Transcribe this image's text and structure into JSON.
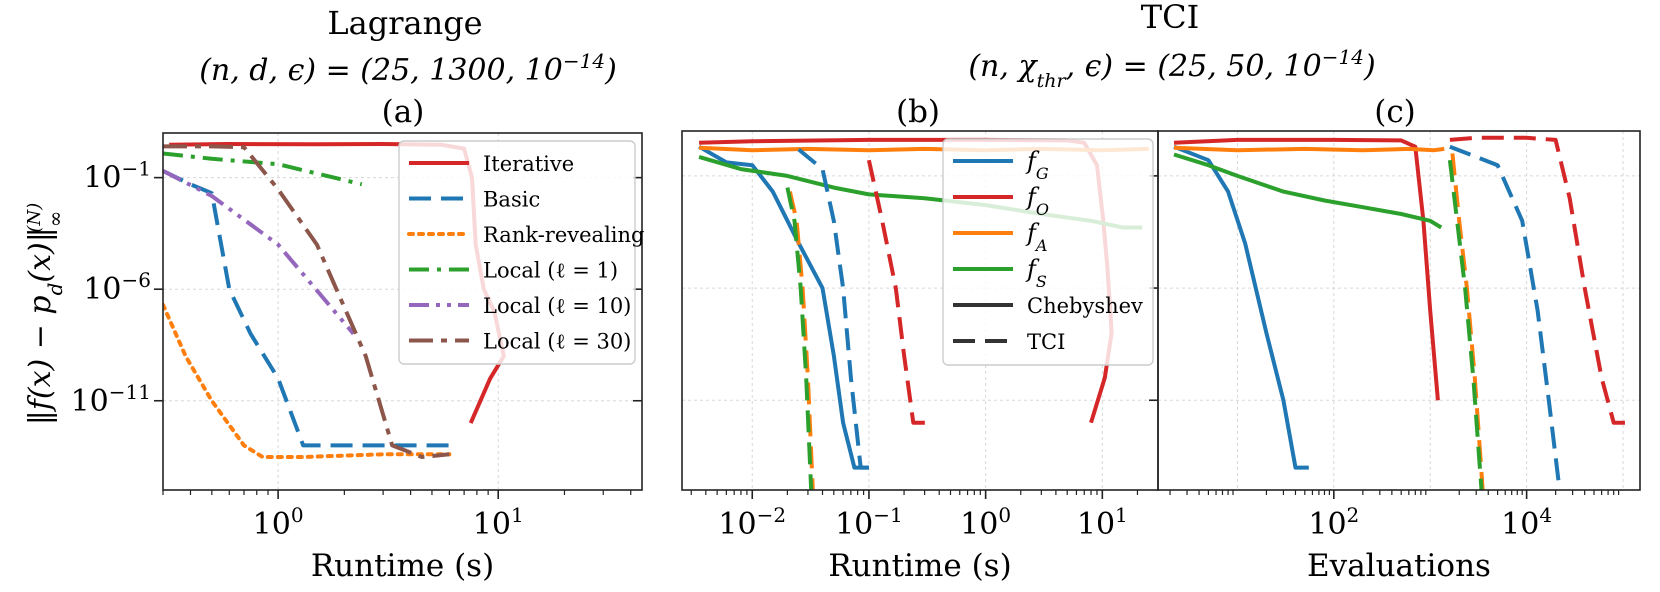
{
  "titles": {
    "left_main": "Lagrange",
    "left_params": "(n, d, ϵ) = (25, 1300, 10",
    "left_params_exp": "−14",
    "left_params_end": ")",
    "right_main": "TCI",
    "right_params": "(n, χ",
    "right_params_sub": "thr",
    "right_params_rest": ", ϵ) = (25, 50, 10",
    "right_params_exp": "−14",
    "right_params_end": ")"
  },
  "panel_labels": {
    "a": "(a)",
    "b": "(b)",
    "c": "(c)"
  },
  "ylabel": "‖f(x) − p",
  "ylabel_sub": "d",
  "ylabel_rest": "(x)‖",
  "ylabel_sup": "(N)",
  "ylabel_subinf": "∞",
  "colors": {
    "blue": "#1f77b4",
    "red": "#d62728",
    "orange": "#ff7f0e",
    "green": "#2ca02c",
    "purple": "#9467bd",
    "brown": "#8c564b",
    "black": "#333333"
  },
  "chart_data": [
    {
      "id": "a",
      "type": "line",
      "title": "(a)",
      "xlabel": "Runtime (s)",
      "xscale": "log",
      "yscale": "log",
      "xlim": [
        0.3,
        45
      ],
      "ylim": [
        1e-15,
        10.0
      ],
      "x_ticks": [
        {
          "v": 1,
          "b": "10",
          "e": "0"
        },
        {
          "v": 10,
          "b": "10",
          "e": "1"
        }
      ],
      "y_ticks": [
        {
          "v": 0.1,
          "b": "10",
          "e": "−1"
        },
        {
          "v": 1e-06,
          "b": "10",
          "e": "−6"
        },
        {
          "v": 1e-11,
          "b": "10",
          "e": "−11"
        }
      ],
      "legend": {
        "position": "upper right",
        "entries": [
          {
            "label": "Iterative",
            "color": "red",
            "dash": "solid"
          },
          {
            "label": "Basic",
            "color": "blue",
            "dash": "dashed"
          },
          {
            "label": "Rank-revealing",
            "color": "orange",
            "dash": "dotted"
          },
          {
            "label": "Local (ℓ = 1)",
            "color": "green",
            "dash": "dashdot"
          },
          {
            "label": "Local (ℓ = 10)",
            "color": "purple",
            "dash": "dashdotdot"
          },
          {
            "label": "Local (ℓ = 30)",
            "color": "brown",
            "dash": "dashdotwide"
          }
        ]
      },
      "series": [
        {
          "name": "Iterative",
          "color": "red",
          "dash": "solid",
          "points": [
            [
              0.32,
              3
            ],
            [
              0.6,
              3.2
            ],
            [
              1.5,
              3.1
            ],
            [
              3,
              3.2
            ],
            [
              5.5,
              3
            ],
            [
              7,
              2
            ],
            [
              7.6,
              0.1
            ],
            [
              7.9,
              0.0001
            ],
            [
              8.6,
              1e-06
            ],
            [
              9.6,
              1e-07
            ],
            [
              10.6,
              1e-09
            ],
            [
              9.2,
              1e-10
            ],
            [
              7.5,
              1e-12
            ]
          ]
        },
        {
          "name": "Basic",
          "color": "blue",
          "dash": "dashed",
          "points": [
            [
              0.3,
              0.2
            ],
            [
              0.4,
              0.05
            ],
            [
              0.5,
              0.02
            ],
            [
              0.6,
              1e-06
            ],
            [
              0.75,
              1e-08
            ],
            [
              1,
              1e-10
            ],
            [
              1.3,
              1e-13
            ],
            [
              2,
              1e-13
            ],
            [
              3,
              1e-13
            ],
            [
              6,
              1e-13
            ]
          ]
        },
        {
          "name": "Rank-revealing",
          "color": "orange",
          "dash": "dotted",
          "points": [
            [
              0.3,
              2e-07
            ],
            [
              0.38,
              1e-09
            ],
            [
              0.5,
              1e-11
            ],
            [
              0.7,
              1e-13
            ],
            [
              0.85,
              3e-14
            ],
            [
              1.3,
              3e-14
            ],
            [
              3,
              4e-14
            ],
            [
              6,
              4e-14
            ]
          ]
        },
        {
          "name": "Local (ℓ = 1)",
          "color": "green",
          "dash": "dashdot",
          "points": [
            [
              0.3,
              1.2
            ],
            [
              0.5,
              0.7
            ],
            [
              1,
              0.4
            ],
            [
              2.4,
              0.05
            ]
          ]
        },
        {
          "name": "Local (ℓ = 10)",
          "color": "purple",
          "dash": "dashdotdot",
          "points": [
            [
              0.3,
              0.2
            ],
            [
              0.5,
              0.015
            ],
            [
              1,
              0.0001
            ],
            [
              2.2,
              1e-08
            ]
          ]
        },
        {
          "name": "Local (ℓ = 30)",
          "color": "brown",
          "dash": "dashdotwide",
          "points": [
            [
              0.3,
              2.5
            ],
            [
              0.5,
              2.5
            ],
            [
              0.7,
              2.3
            ],
            [
              1,
              0.03
            ],
            [
              1.5,
              0.0001
            ],
            [
              2.5,
              1e-09
            ],
            [
              3.3,
              1e-13
            ],
            [
              4.5,
              3e-14
            ],
            [
              6,
              4e-14
            ]
          ]
        }
      ]
    },
    {
      "id": "b",
      "type": "line",
      "title": "(b)",
      "xlabel": "Runtime (s)",
      "xscale": "log",
      "yscale": "log",
      "xlim": [
        0.0025,
        30
      ],
      "ylim": [
        1e-15,
        10.0
      ],
      "x_ticks": [
        {
          "v": 0.01,
          "b": "10",
          "e": "−2"
        },
        {
          "v": 0.1,
          "b": "10",
          "e": "−1"
        },
        {
          "v": 1,
          "b": "10",
          "e": "0"
        },
        {
          "v": 10,
          "b": "10",
          "e": "1"
        }
      ],
      "y_ticks": [
        {
          "v": 0.1
        },
        {
          "v": 1e-06
        },
        {
          "v": 1e-11
        }
      ],
      "legend": {
        "position": "upper center",
        "entries": [
          {
            "label": "f",
            "sub": "G",
            "color": "blue",
            "dash": "solid"
          },
          {
            "label": "f",
            "sub": "O",
            "color": "red",
            "dash": "solid"
          },
          {
            "label": "f",
            "sub": "A",
            "color": "orange",
            "dash": "solid"
          },
          {
            "label": "f",
            "sub": "S",
            "color": "green",
            "dash": "solid"
          },
          {
            "label": "Chebyshev",
            "color": "black",
            "dash": "solid"
          },
          {
            "label": "TCI",
            "color": "black",
            "dash": "dashed"
          }
        ]
      },
      "series": [
        {
          "name": "fG Chebyshev",
          "color": "blue",
          "dash": "solid",
          "points": [
            [
              0.0035,
              2
            ],
            [
              0.006,
              0.4
            ],
            [
              0.01,
              0.3
            ],
            [
              0.015,
              0.02
            ],
            [
              0.025,
              0.0001
            ],
            [
              0.04,
              1e-06
            ],
            [
              0.05,
              1e-09
            ],
            [
              0.06,
              1e-12
            ],
            [
              0.075,
              1e-14
            ],
            [
              0.1,
              1e-14
            ]
          ]
        },
        {
          "name": "fO Chebyshev",
          "color": "red",
          "dash": "solid",
          "points": [
            [
              0.0035,
              3
            ],
            [
              0.01,
              3.5
            ],
            [
              0.1,
              4
            ],
            [
              1,
              4
            ],
            [
              5,
              3.8
            ],
            [
              7,
              3
            ],
            [
              9,
              0.3
            ],
            [
              10.2,
              0.001
            ],
            [
              11,
              1e-05
            ],
            [
              11.7,
              1e-07
            ],
            [
              12,
              1e-08
            ],
            [
              10.5,
              1e-10
            ],
            [
              8,
              1e-12
            ]
          ]
        },
        {
          "name": "fA Chebyshev",
          "color": "orange",
          "dash": "solid",
          "points": [
            [
              0.0035,
              1.8
            ],
            [
              0.01,
              1.4
            ],
            [
              0.03,
              1.6
            ],
            [
              0.1,
              1.4
            ],
            [
              0.3,
              1.6
            ],
            [
              1,
              1.4
            ],
            [
              3,
              1.6
            ],
            [
              10,
              1.4
            ],
            [
              25,
              1.6
            ]
          ]
        },
        {
          "name": "fS Chebyshev",
          "color": "green",
          "dash": "solid",
          "points": [
            [
              0.0035,
              0.7
            ],
            [
              0.008,
              0.2
            ],
            [
              0.02,
              0.1
            ],
            [
              0.05,
              0.03
            ],
            [
              0.1,
              0.015
            ],
            [
              0.3,
              0.01
            ],
            [
              1,
              0.005
            ],
            [
              3,
              0.002
            ],
            [
              8,
              0.001
            ],
            [
              15,
              0.0005
            ],
            [
              22,
              0.0005
            ]
          ]
        },
        {
          "name": "fG TCI",
          "color": "blue",
          "dash": "dashed",
          "points": [
            [
              0.025,
              1.5
            ],
            [
              0.04,
              0.2
            ],
            [
              0.05,
              0.001
            ],
            [
              0.06,
              1e-06
            ],
            [
              0.07,
              1e-10
            ],
            [
              0.085,
              1e-14
            ],
            [
              0.1,
              1e-14
            ]
          ]
        },
        {
          "name": "fO TCI",
          "color": "red",
          "dash": "dashed",
          "points": [
            [
              0.1,
              0.5
            ],
            [
              0.13,
              0.001
            ],
            [
              0.17,
              1e-06
            ],
            [
              0.2,
              1e-09
            ],
            [
              0.24,
              1e-12
            ],
            [
              0.3,
              1e-12
            ],
            [
              0.35,
              1e-12
            ]
          ]
        },
        {
          "name": "fA TCI",
          "color": "orange",
          "dash": "dashed",
          "points": [
            [
              0.021,
              0.02
            ],
            [
              0.024,
              0.001
            ],
            [
              0.027,
              1e-06
            ],
            [
              0.03,
              1e-10
            ],
            [
              0.033,
              1e-15
            ]
          ]
        },
        {
          "name": "fS TCI",
          "color": "green",
          "dash": "dashed",
          "points": [
            [
              0.02,
              0.03
            ],
            [
              0.023,
              0.001
            ],
            [
              0.026,
              1e-06
            ],
            [
              0.029,
              1e-10
            ],
            [
              0.032,
              1e-15
            ]
          ]
        }
      ]
    },
    {
      "id": "c",
      "type": "line",
      "title": "(c)",
      "xlabel": "Evaluations",
      "xscale": "log",
      "yscale": "log",
      "xlim": [
        1.5,
        150000
      ],
      "ylim": [
        1e-15,
        10.0
      ],
      "x_ticks": [
        {
          "v": 100,
          "b": "10",
          "e": "2"
        },
        {
          "v": 10000,
          "b": "10",
          "e": "4"
        }
      ],
      "y_ticks": [
        {
          "v": 0.1
        },
        {
          "v": 1e-06
        },
        {
          "v": 1e-11
        }
      ],
      "series": [
        {
          "name": "fG Chebyshev",
          "color": "blue",
          "dash": "solid",
          "points": [
            [
              2.2,
              2
            ],
            [
              5,
              0.5
            ],
            [
              8,
              0.02
            ],
            [
              12,
              0.0001
            ],
            [
              20,
              1e-08
            ],
            [
              30,
              1e-11
            ],
            [
              40,
              1e-14
            ],
            [
              55,
              1e-14
            ]
          ]
        },
        {
          "name": "fO Chebyshev",
          "color": "red",
          "dash": "solid",
          "points": [
            [
              2.2,
              3
            ],
            [
              10,
              4
            ],
            [
              100,
              4
            ],
            [
              500,
              3.8
            ],
            [
              700,
              2
            ],
            [
              850,
              0.001
            ],
            [
              1000,
              1e-07
            ],
            [
              1200,
              1e-11
            ]
          ]
        },
        {
          "name": "fA Chebyshev",
          "color": "orange",
          "dash": "solid",
          "points": [
            [
              2.2,
              1.8
            ],
            [
              10,
              1.4
            ],
            [
              50,
              1.6
            ],
            [
              200,
              1.4
            ],
            [
              600,
              1.6
            ],
            [
              1100,
              1.4
            ],
            [
              1400,
              1.6
            ]
          ]
        },
        {
          "name": "fS Chebyshev",
          "color": "green",
          "dash": "solid",
          "points": [
            [
              2.2,
              0.9
            ],
            [
              5,
              0.3
            ],
            [
              10,
              0.1
            ],
            [
              30,
              0.02
            ],
            [
              80,
              0.008
            ],
            [
              200,
              0.004
            ],
            [
              500,
              0.002
            ],
            [
              1000,
              0.001
            ],
            [
              1300,
              0.0005
            ]
          ]
        },
        {
          "name": "fG TCI",
          "color": "blue",
          "dash": "dashed",
          "points": [
            [
              1600,
              2
            ],
            [
              5000,
              0.3
            ],
            [
              9000,
              0.001
            ],
            [
              13000,
              1e-07
            ],
            [
              17000,
              1e-11
            ],
            [
              22000,
              1e-15
            ]
          ]
        },
        {
          "name": "fO TCI",
          "color": "red",
          "dash": "dashed",
          "points": [
            [
              1600,
              4
            ],
            [
              3000,
              5
            ],
            [
              10000,
              5
            ],
            [
              20000,
              4
            ],
            [
              28000,
              0.01
            ],
            [
              40000,
              1e-06
            ],
            [
              60000,
              1e-10
            ],
            [
              80000,
              1e-12
            ],
            [
              120000,
              1e-12
            ]
          ]
        },
        {
          "name": "fA TCI",
          "color": "orange",
          "dash": "dashed",
          "points": [
            [
              1700,
              1
            ],
            [
              2000,
              0.001
            ],
            [
              2400,
              1e-06
            ],
            [
              2900,
              1e-10
            ],
            [
              3500,
              1e-15
            ]
          ]
        },
        {
          "name": "fS TCI",
          "color": "green",
          "dash": "dashed",
          "points": [
            [
              1600,
              0.5
            ],
            [
              1900,
              0.001
            ],
            [
              2300,
              1e-06
            ],
            [
              2800,
              1e-10
            ],
            [
              3400,
              1e-15
            ]
          ]
        }
      ]
    }
  ]
}
